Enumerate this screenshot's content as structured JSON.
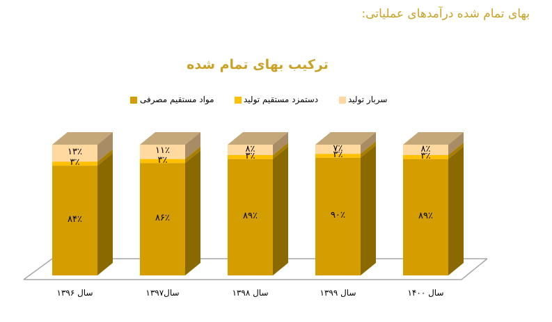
{
  "page": {
    "heading": "بهای تمام شده درآمدهای عملیاتی:"
  },
  "colors": {
    "heading": "#c9a227",
    "materials": "#d49e00",
    "materials_side": "#8a6a00",
    "labor": "#ffc000",
    "labor_side": "#a87e00",
    "overhead": "#ffd9a0",
    "overhead_side": "#a88c66",
    "overhead_top": "#c4a87a",
    "floor_line": "#a6a6a6"
  },
  "legend": [
    {
      "key": "materials",
      "label": "مواد مستقیم مصرفی",
      "color": "#d49e00"
    },
    {
      "key": "labor",
      "label": "دستمزد مستقیم تولید",
      "color": "#ffc000"
    },
    {
      "key": "overhead",
      "label": "سربار تولید",
      "color": "#ffd9a0"
    }
  ],
  "chart_data": {
    "type": "bar",
    "stacked": true,
    "three_d": true,
    "title": "ترکیب بهای تمام شده",
    "xlabel": "",
    "ylabel": "",
    "ylim": [
      0,
      100
    ],
    "grid": false,
    "legend_position": "top",
    "categories": [
      "سال ۱۳۹۶",
      "سال۱۳۹۷",
      "سال ۱۳۹۸",
      "سال ۱۳۹۹",
      "سال ۱۴۰۰"
    ],
    "series": [
      {
        "name": "مواد مستقیم مصرفی",
        "values": [
          84,
          86,
          89,
          90,
          89
        ],
        "labels": [
          "۸۴٪",
          "۸۶٪",
          "۸۹٪",
          "۹۰٪",
          "۸۹٪"
        ]
      },
      {
        "name": "دستمزد مستقیم تولید",
        "values": [
          3,
          3,
          3,
          3,
          3
        ],
        "labels": [
          "۳٪",
          "۳٪",
          "۳٪",
          "۳٪",
          "۳٪"
        ]
      },
      {
        "name": "سربار تولید",
        "values": [
          13,
          11,
          8,
          7,
          8
        ],
        "labels": [
          "۱۳٪",
          "۱۱٪",
          "۸٪",
          "۷٪",
          "۸٪"
        ]
      }
    ]
  }
}
